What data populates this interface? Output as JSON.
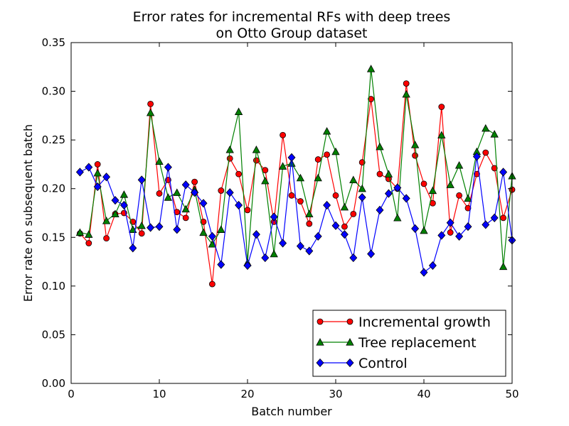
{
  "chart_data": {
    "type": "line",
    "title_line1": "Error rates for incremental RFs with deep trees",
    "title_line2": "on Otto Group dataset",
    "xlabel": "Batch number",
    "ylabel": "Error rate on subsequent batch",
    "xlim": [
      0,
      50
    ],
    "ylim": [
      0,
      0.35
    ],
    "xticks": [
      0,
      10,
      20,
      30,
      40,
      50
    ],
    "yticks": [
      0.0,
      0.05,
      0.1,
      0.15,
      0.2,
      0.25,
      0.3,
      0.35
    ],
    "ytick_labels": [
      "0.00",
      "0.05",
      "0.10",
      "0.15",
      "0.20",
      "0.25",
      "0.30",
      "0.35"
    ],
    "grid": false,
    "legend_position": "lower-right",
    "x": [
      1,
      2,
      3,
      4,
      5,
      6,
      7,
      8,
      9,
      10,
      11,
      12,
      13,
      14,
      15,
      16,
      17,
      18,
      19,
      20,
      21,
      22,
      23,
      24,
      25,
      26,
      27,
      28,
      29,
      30,
      31,
      32,
      33,
      34,
      35,
      36,
      37,
      38,
      39,
      40,
      41,
      42,
      43,
      44,
      45,
      46,
      47,
      48,
      49,
      50
    ],
    "series": [
      {
        "name": "Incremental growth",
        "color": "#ff0000",
        "line_color": "#ff0000",
        "marker": "circle",
        "values": [
          0.154,
          0.144,
          0.225,
          0.149,
          0.174,
          0.175,
          0.166,
          0.154,
          0.287,
          0.195,
          0.209,
          0.176,
          0.17,
          0.207,
          0.166,
          0.102,
          0.198,
          0.231,
          0.215,
          0.178,
          0.229,
          0.219,
          0.166,
          0.255,
          0.193,
          0.187,
          0.164,
          0.23,
          0.235,
          0.193,
          0.161,
          0.174,
          0.227,
          0.292,
          0.215,
          0.21,
          0.2,
          0.308,
          0.234,
          0.205,
          0.185,
          0.284,
          0.155,
          0.193,
          0.18,
          0.215,
          0.237,
          0.221,
          0.17,
          0.199
        ]
      },
      {
        "name": "Tree replacement",
        "color": "#008000",
        "line_color": "#008000",
        "marker": "triangle",
        "values": [
          0.155,
          0.153,
          0.216,
          0.167,
          0.174,
          0.194,
          0.158,
          0.162,
          0.278,
          0.228,
          0.191,
          0.196,
          0.179,
          0.199,
          0.155,
          0.143,
          0.158,
          0.24,
          0.279,
          0.124,
          0.24,
          0.208,
          0.133,
          0.223,
          0.226,
          0.211,
          0.174,
          0.211,
          0.259,
          0.238,
          0.181,
          0.209,
          0.2,
          0.323,
          0.243,
          0.215,
          0.17,
          0.297,
          0.245,
          0.157,
          0.198,
          0.255,
          0.204,
          0.224,
          0.19,
          0.238,
          0.262,
          0.256,
          0.12,
          0.213
        ]
      },
      {
        "name": "Control",
        "color": "#0000ff",
        "line_color": "#0000ff",
        "marker": "diamond",
        "values": [
          0.217,
          0.222,
          0.202,
          0.212,
          0.188,
          0.183,
          0.139,
          0.209,
          0.16,
          0.161,
          0.222,
          0.158,
          0.204,
          0.196,
          0.185,
          0.151,
          0.122,
          0.196,
          0.183,
          0.121,
          0.153,
          0.129,
          0.171,
          0.144,
          0.232,
          0.141,
          0.136,
          0.151,
          0.183,
          0.162,
          0.153,
          0.129,
          0.191,
          0.133,
          0.178,
          0.195,
          0.201,
          0.19,
          0.159,
          0.114,
          0.121,
          0.152,
          0.165,
          0.151,
          0.161,
          0.233,
          0.163,
          0.17,
          0.217,
          0.147
        ]
      }
    ]
  }
}
